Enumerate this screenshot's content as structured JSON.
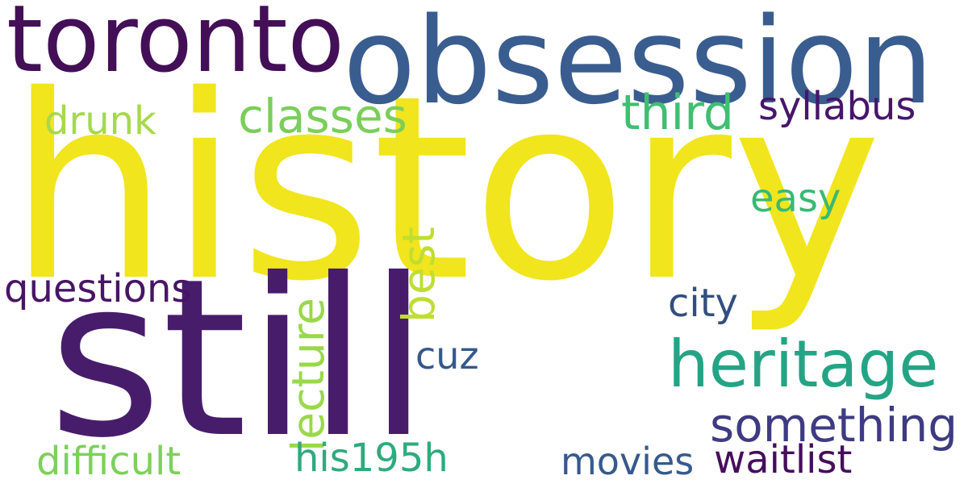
{
  "words": [
    {
      "text": "history",
      "color": "#f1e51d"
    },
    {
      "text": "still",
      "color": "#471d6b"
    },
    {
      "text": "obsession",
      "color": "#3a5d8f"
    },
    {
      "text": "toronto",
      "color": "#430f57"
    },
    {
      "text": "heritage",
      "color": "#25a485"
    },
    {
      "text": "something",
      "color": "#3e3b82"
    },
    {
      "text": "classes",
      "color": "#7ace5a"
    },
    {
      "text": "third",
      "color": "#40be72"
    },
    {
      "text": "syllabus",
      "color": "#47156c"
    },
    {
      "text": "drunk",
      "color": "#a6d949"
    },
    {
      "text": "easy",
      "color": "#39b973"
    },
    {
      "text": "best",
      "color": "#bfde30"
    },
    {
      "text": "lecture",
      "color": "#9ad84a"
    },
    {
      "text": "questions",
      "color": "#481565"
    },
    {
      "text": "city",
      "color": "#334e7e"
    },
    {
      "text": "cuz",
      "color": "#35588c"
    },
    {
      "text": "difficult",
      "color": "#7cd15a"
    },
    {
      "text": "his195h",
      "color": "#2dab7c"
    },
    {
      "text": "movies",
      "color": "#365a8d"
    },
    {
      "text": "waitlist",
      "color": "#460d5c"
    }
  ]
}
